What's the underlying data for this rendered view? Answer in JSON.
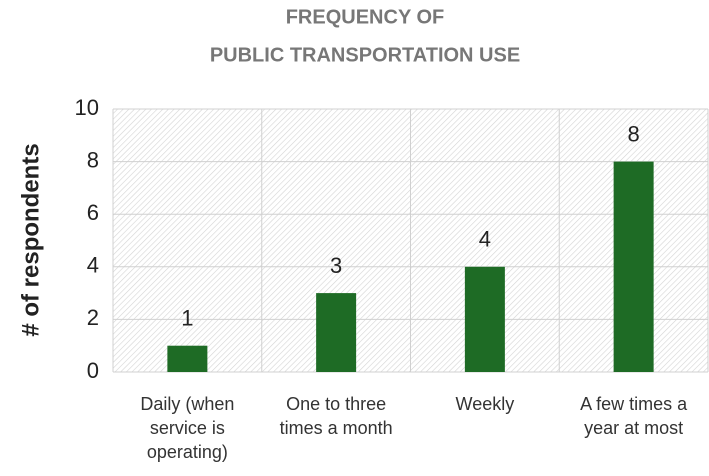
{
  "chart_data": {
    "type": "bar",
    "title": [
      "FREQUENCY OF",
      "PUBLIC TRANSPORTATION USE"
    ],
    "y_label": "# of respondents",
    "categories": [
      "Daily (when service is operating)",
      "One to three times a month",
      "Weekly",
      "A few times a year at most"
    ],
    "values": [
      1,
      3,
      4,
      8
    ],
    "color": "#1e6b25",
    "ylim": [
      0,
      10
    ],
    "yticks": [
      0,
      2,
      4,
      6,
      8,
      10
    ],
    "grid": true
  }
}
